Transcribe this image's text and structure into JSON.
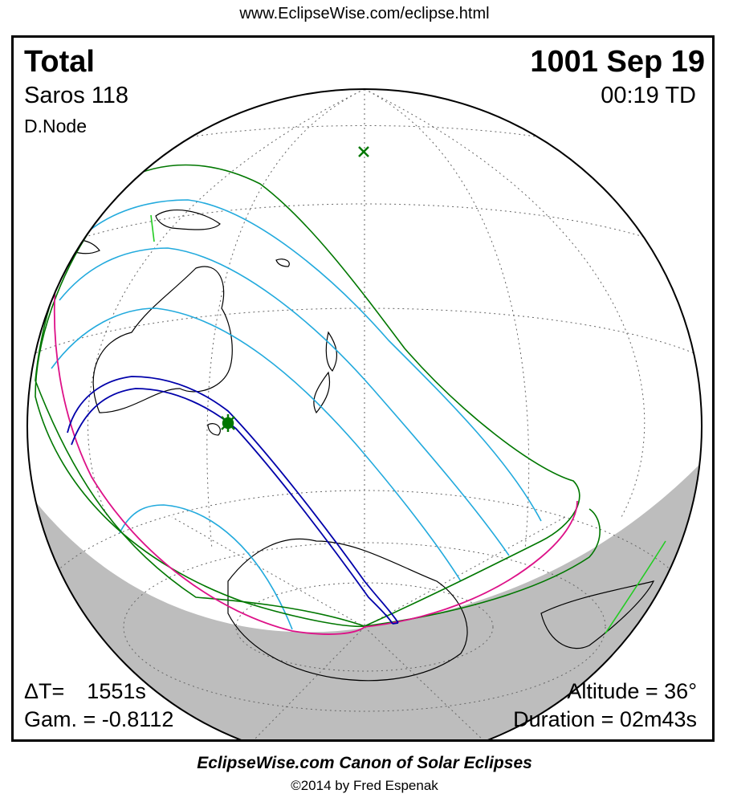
{
  "header": {
    "url": "www.EclipseWise.com/eclipse.html"
  },
  "eclipse": {
    "type": "Total",
    "saros": "Saros 118",
    "node": "D.Node",
    "date": "1001 Sep 19",
    "time": "00:19 TD",
    "delta_t_label": "ΔT=",
    "delta_t_value": "1551s",
    "gamma": "Gam. = -0.8112",
    "altitude": "Altitude = 36°",
    "duration": "Duration = 02m43s"
  },
  "footer": {
    "title": "EclipseWise.com Canon of Solar Eclipses",
    "copyright": "©2014 by Fred Espenak"
  },
  "colors": {
    "umbral_path": "#0000aa",
    "penumbral_limits": "#007700",
    "sunrise_sunset": "#dd1188",
    "penumbral_magnitude": "#22aadd",
    "night_shading": "#bdbdbd",
    "greatest_eclipse_marker": "#007700"
  },
  "map": {
    "projection": "orthographic globe",
    "markers": [
      "greatest-eclipse",
      "sub-solar-point"
    ]
  }
}
